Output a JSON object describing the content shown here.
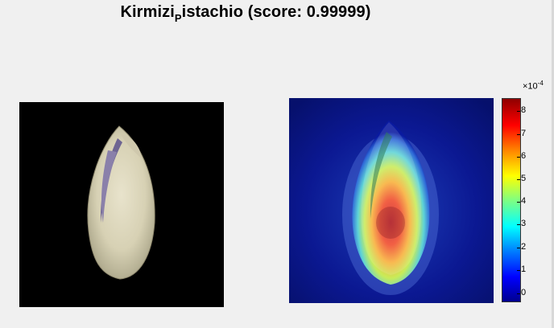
{
  "figure": {
    "title_main": "Kirmizi",
    "title_sub": "P",
    "title_rest": "istachio (score: 0.99999)"
  },
  "colorbar": {
    "multiplier": "×10",
    "exponent": "-4",
    "ticks": [
      "8",
      "7",
      "6",
      "5",
      "4",
      "3",
      "2",
      "1",
      "0"
    ]
  },
  "images": {
    "left": "pistachio-photo",
    "right": "pistachio-heatmap-overlay"
  }
}
